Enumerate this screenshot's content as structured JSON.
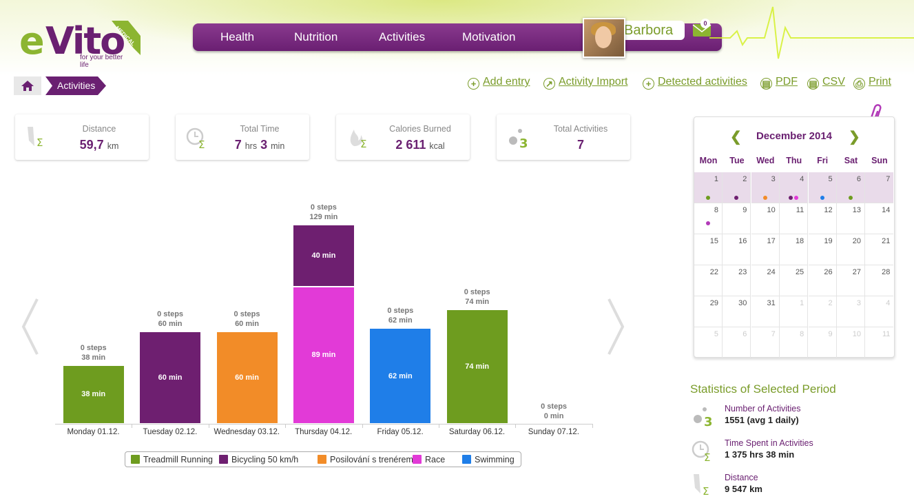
{
  "brand": {
    "logo_e": "e",
    "logo_vito": "Vito",
    "ribbon": "MEDICAL",
    "tagline": "for your better life"
  },
  "nav": {
    "items": [
      "Health",
      "Nutrition",
      "Activities",
      "Motivation"
    ]
  },
  "user": {
    "name": "Barbora",
    "unread_messages": "0"
  },
  "breadcrumb": {
    "current": "Activities"
  },
  "actions": [
    "Add entry",
    "Activity Import",
    "Detected activities",
    "PDF",
    "CSV",
    "Print"
  ],
  "cards": [
    {
      "label": "Distance",
      "value": "59,7",
      "unit": "km"
    },
    {
      "label": "Total Time",
      "value_a": "7",
      "unit_a": "hrs",
      "value_b": "3",
      "unit_b": "min"
    },
    {
      "label": "Calories Burned",
      "value": "2 611",
      "unit": "kcal"
    },
    {
      "label": "Total Activities",
      "value": "7"
    }
  ],
  "chart_data": {
    "type": "bar",
    "stacked": true,
    "categories": [
      "Monday 01.12.",
      "Tuesday 02.12.",
      "Wednesday 03.12.",
      "Thursday 04.12.",
      "Friday 05.12.",
      "Saturday 06.12.",
      "Sunday 07.12."
    ],
    "unit": "min",
    "series": [
      {
        "name": "Treadmill Running",
        "color": "#6e9c1f",
        "values": [
          38,
          0,
          0,
          0,
          0,
          74,
          0
        ]
      },
      {
        "name": "Bicycling 50 km/h",
        "color": "#6e1f70",
        "values": [
          0,
          60,
          0,
          40,
          0,
          0,
          0
        ]
      },
      {
        "name": "Posilování s trenérem",
        "color": "#f28c28",
        "values": [
          0,
          0,
          60,
          0,
          0,
          0,
          0
        ]
      },
      {
        "name": "Race",
        "color": "#e23ad7",
        "values": [
          0,
          0,
          0,
          89,
          0,
          0,
          0
        ]
      },
      {
        "name": "Swimming",
        "color": "#1f7ee8",
        "values": [
          0,
          0,
          0,
          0,
          62,
          0,
          0
        ]
      }
    ],
    "segments": [
      [
        {
          "series": 0,
          "label": "38 min"
        }
      ],
      [
        {
          "series": 1,
          "label": "60 min"
        }
      ],
      [
        {
          "series": 2,
          "label": "60 min"
        }
      ],
      [
        {
          "series": 3,
          "label": "89 min"
        },
        {
          "series": 1,
          "label": "40 min"
        }
      ],
      [
        {
          "series": 4,
          "label": "62 min"
        }
      ],
      [
        {
          "series": 0,
          "label": "74 min"
        }
      ],
      []
    ],
    "totals": [
      38,
      60,
      60,
      129,
      62,
      74,
      0
    ],
    "top_labels": [
      [
        "0 steps",
        "38 min"
      ],
      [
        "0 steps",
        "60 min"
      ],
      [
        "0 steps",
        "60 min"
      ],
      [
        "0 steps",
        "129 min"
      ],
      [
        "0 steps",
        "62 min"
      ],
      [
        "0 steps",
        "74 min"
      ],
      [
        "0 steps",
        "0 min"
      ]
    ],
    "ylim": [
      0,
      135
    ]
  },
  "calendar": {
    "month": "December 2014",
    "weekdays": [
      "Mon",
      "Tue",
      "Wed",
      "Thu",
      "Fri",
      "Sat",
      "Sun"
    ],
    "weeks": [
      [
        "1",
        "2",
        "3",
        "4",
        "5",
        "6",
        "7"
      ],
      [
        "8",
        "9",
        "10",
        "11",
        "12",
        "13",
        "14"
      ],
      [
        "15",
        "16",
        "17",
        "18",
        "19",
        "20",
        "21"
      ],
      [
        "22",
        "23",
        "24",
        "25",
        "26",
        "27",
        "28"
      ],
      [
        "29",
        "30",
        "31",
        "1",
        "2",
        "3",
        "4"
      ],
      [
        "5",
        "6",
        "7",
        "8",
        "9",
        "10",
        "11"
      ]
    ],
    "other_month_from": {
      "row4": 3,
      "row5": 0
    },
    "selected_week": 0,
    "dots": [
      {
        "row": 0,
        "col": 0,
        "colors": [
          "#6e9c1f"
        ]
      },
      {
        "row": 0,
        "col": 1,
        "colors": [
          "#6e1f70"
        ]
      },
      {
        "row": 0,
        "col": 2,
        "colors": [
          "#f28c28"
        ]
      },
      {
        "row": 0,
        "col": 3,
        "colors": [
          "#6e1f70",
          "#e23ad7"
        ]
      },
      {
        "row": 0,
        "col": 4,
        "colors": [
          "#1f7ee8"
        ]
      },
      {
        "row": 0,
        "col": 5,
        "colors": [
          "#6e9c1f"
        ]
      },
      {
        "row": 1,
        "col": 0,
        "colors": [
          "#b23ab8"
        ]
      }
    ]
  },
  "stats": {
    "title": "Statistics of Selected Period",
    "items": [
      {
        "label": "Number of Activities",
        "value": "1551 (avg 1 daily)"
      },
      {
        "label": "Time Spent in Activities",
        "value": "1 375 hrs 38 min"
      },
      {
        "label": "Distance",
        "value": "9 547 km"
      }
    ]
  },
  "colors": {
    "purple": "#6a2071",
    "green": "#7a9c2a"
  }
}
